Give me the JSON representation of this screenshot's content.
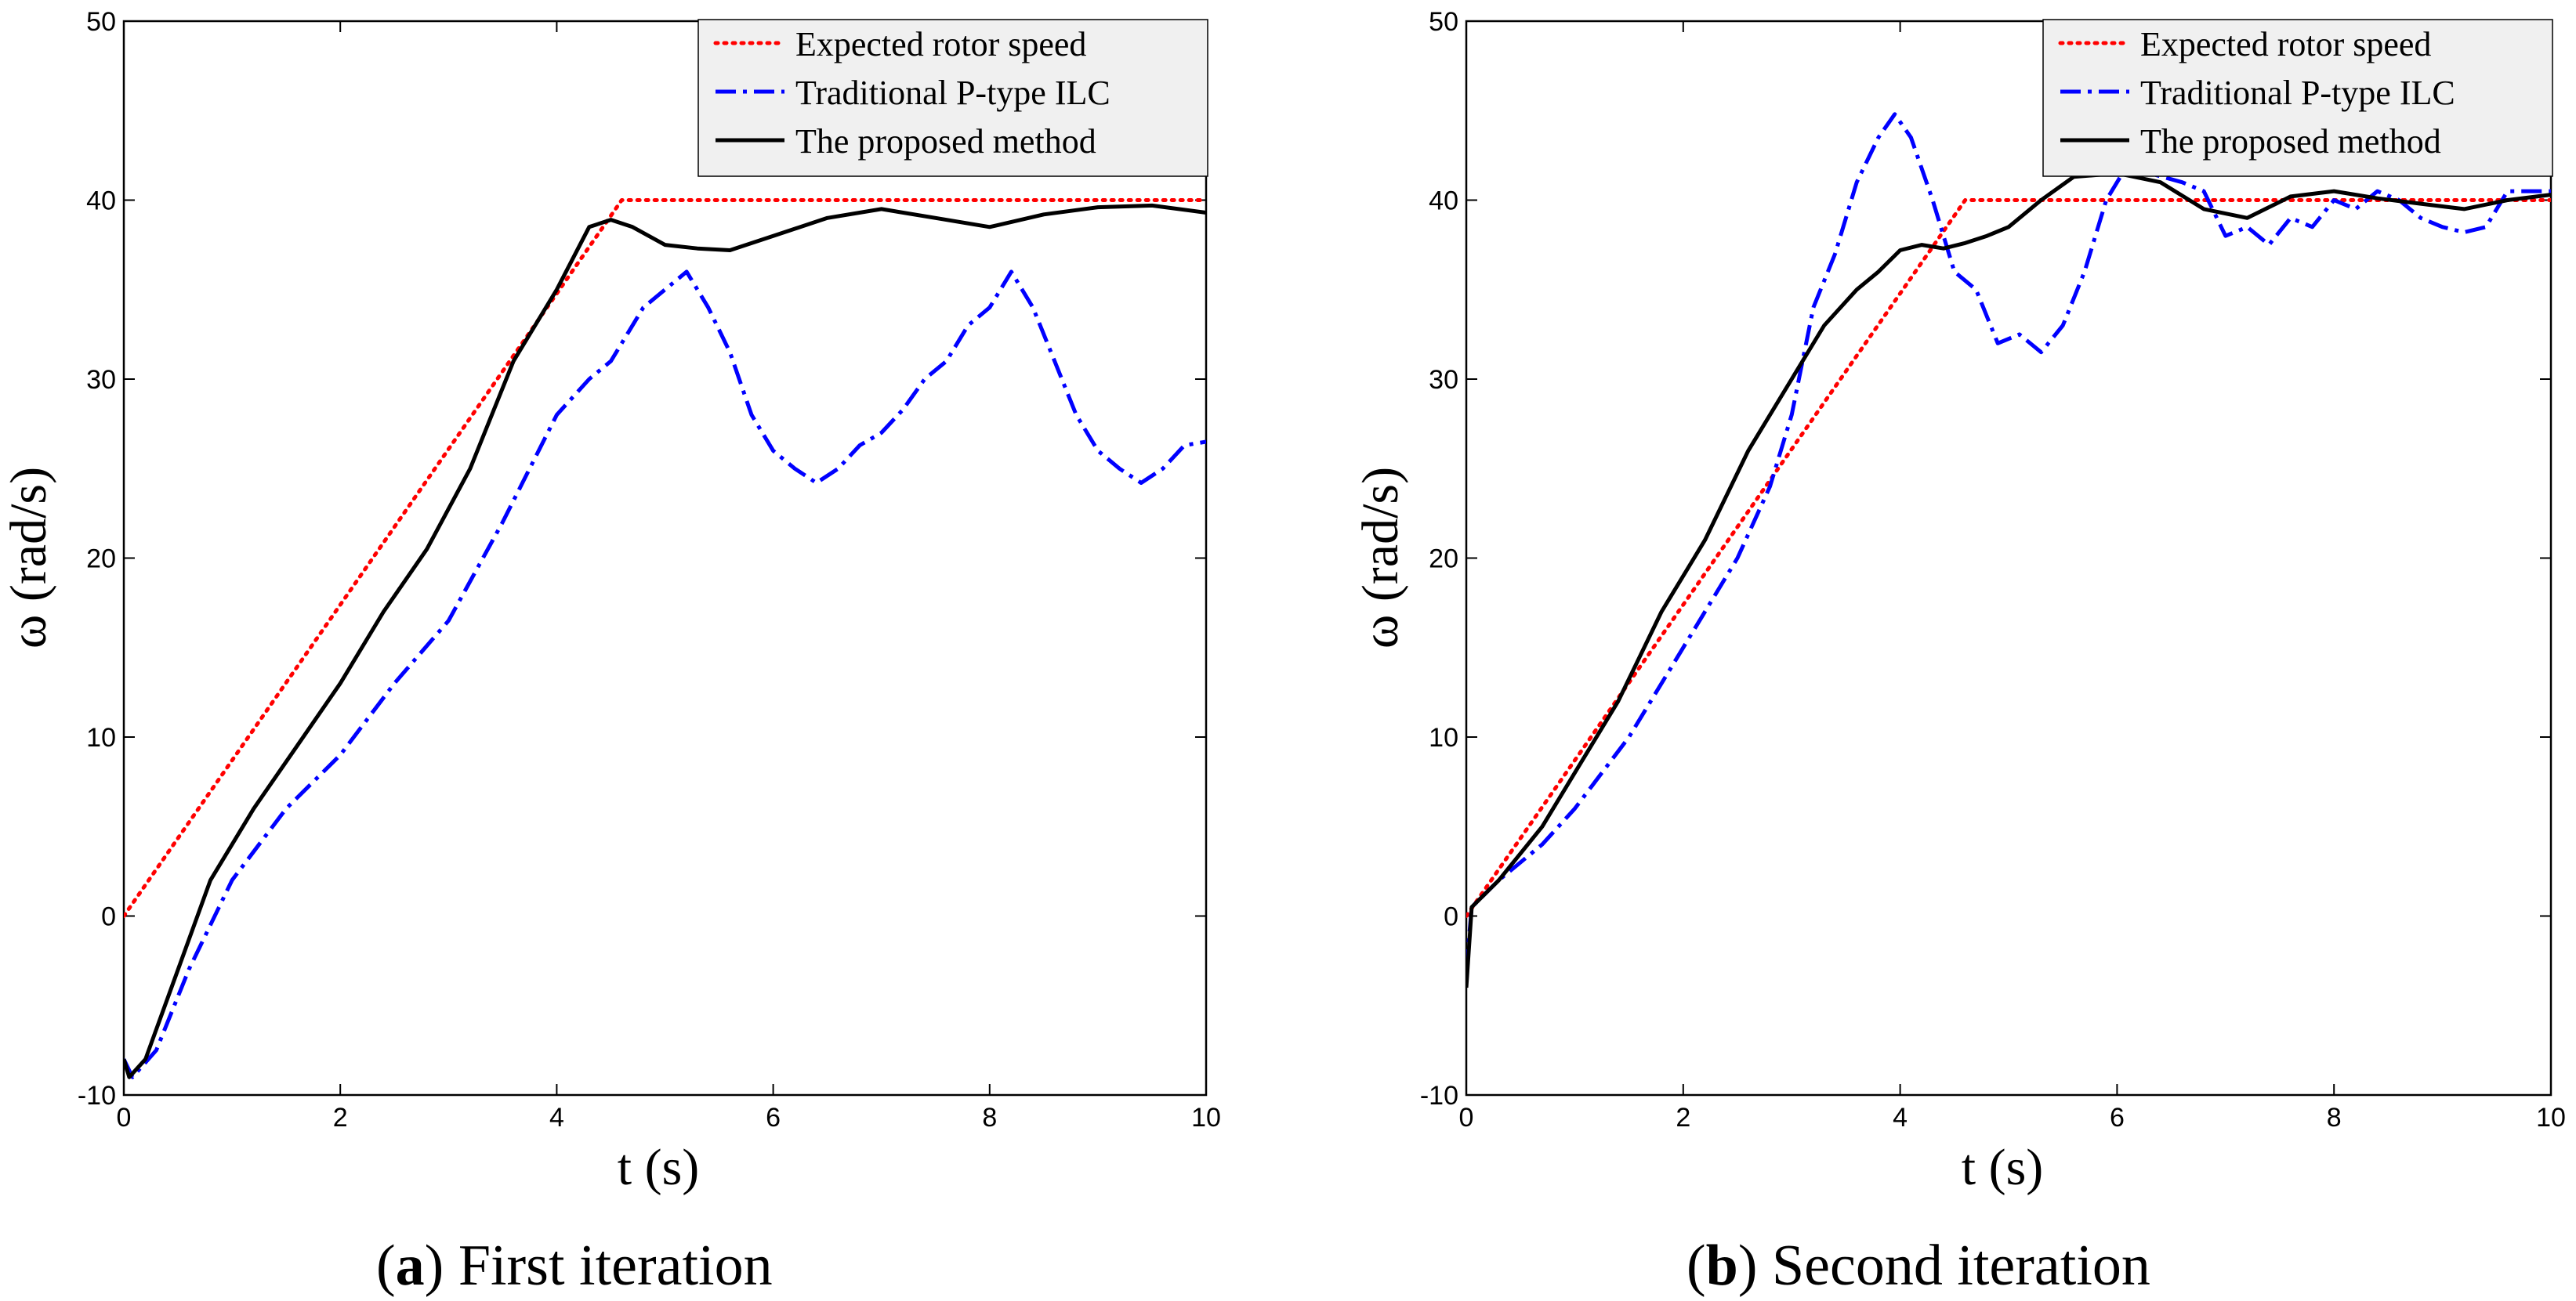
{
  "legend_labels": {
    "expected": "Expected rotor speed",
    "pilc": "Traditional P-type ILC",
    "proposed": "The proposed method"
  },
  "colors": {
    "expected": "#ff0000",
    "pilc": "#0000ff",
    "proposed": "#000000",
    "legend_bg": "#f0f0f0"
  },
  "chart_data": [
    {
      "type": "line",
      "caption_letter": "a",
      "caption_text": " First iteration",
      "xlabel": "t (s)",
      "ylabel": "ω (rad/s)",
      "xlim": [
        0,
        10
      ],
      "ylim": [
        -10,
        50
      ],
      "xticks": [
        "0",
        "2",
        "4",
        "6",
        "8",
        "10"
      ],
      "yticks": [
        "-10",
        "0",
        "10",
        "20",
        "30",
        "40",
        "50"
      ],
      "legend_position": "top-right",
      "series": [
        {
          "key": "expected",
          "name": "Expected rotor speed",
          "x": [
            0,
            4.6,
            10
          ],
          "y": [
            0,
            40,
            40
          ]
        },
        {
          "key": "pilc",
          "name": "Traditional P-type ILC",
          "x": [
            0,
            0.08,
            0.3,
            0.6,
            1.0,
            1.5,
            2.0,
            2.5,
            3.0,
            3.5,
            4.0,
            4.3,
            4.5,
            4.8,
            5.0,
            5.2,
            5.4,
            5.6,
            5.8,
            6.0,
            6.2,
            6.4,
            6.6,
            6.8,
            7.0,
            7.2,
            7.4,
            7.6,
            7.8,
            8.0,
            8.2,
            8.4,
            8.6,
            8.8,
            9.0,
            9.2,
            9.4,
            9.6,
            9.8,
            10.0
          ],
          "y": [
            -8,
            -9,
            -7.5,
            -3,
            2,
            6,
            9,
            13,
            16.5,
            22,
            28,
            30,
            31,
            34,
            35,
            36,
            34,
            31.5,
            28,
            26,
            25,
            24.2,
            25,
            26.3,
            27,
            28.3,
            30,
            31,
            33,
            34,
            36,
            34,
            31,
            28,
            26,
            25,
            24.2,
            25,
            26.3,
            26.5
          ]
        },
        {
          "key": "proposed",
          "name": "The proposed method",
          "x": [
            0,
            0.05,
            0.2,
            0.5,
            0.8,
            1.2,
            1.6,
            2.0,
            2.4,
            2.8,
            3.2,
            3.6,
            4.0,
            4.3,
            4.5,
            4.7,
            5.0,
            5.3,
            5.6,
            6.0,
            6.5,
            7.0,
            7.5,
            8.0,
            8.5,
            9.0,
            9.5,
            10.0
          ],
          "y": [
            -8,
            -9,
            -8,
            -3,
            2,
            6,
            9.5,
            13,
            17,
            20.5,
            25,
            31,
            35,
            38.5,
            38.9,
            38.5,
            37.5,
            37.3,
            37.2,
            38,
            39,
            39.5,
            39,
            38.5,
            39.2,
            39.6,
            39.7,
            39.3
          ]
        }
      ]
    },
    {
      "type": "line",
      "caption_letter": "b",
      "caption_text": " Second iteration",
      "xlabel": "t (s)",
      "ylabel": "ω (rad/s)",
      "xlim": [
        0,
        10
      ],
      "ylim": [
        -10,
        50
      ],
      "xticks": [
        "0",
        "2",
        "4",
        "6",
        "8",
        "10"
      ],
      "yticks": [
        "-10",
        "0",
        "10",
        "20",
        "30",
        "40",
        "50"
      ],
      "legend_position": "top-right",
      "series": [
        {
          "key": "expected",
          "name": "Expected rotor speed",
          "x": [
            0,
            4.6,
            10
          ],
          "y": [
            0,
            40,
            40
          ]
        },
        {
          "key": "pilc",
          "name": "Traditional P-type ILC",
          "x": [
            0,
            0.05,
            0.3,
            0.7,
            1.0,
            1.5,
            2.0,
            2.5,
            2.8,
            3.0,
            3.2,
            3.4,
            3.6,
            3.8,
            3.95,
            4.1,
            4.3,
            4.5,
            4.7,
            4.9,
            5.1,
            5.3,
            5.5,
            5.7,
            5.9,
            6.1,
            6.3,
            6.6,
            6.8,
            7.0,
            7.2,
            7.4,
            7.6,
            7.8,
            8.0,
            8.2,
            8.4,
            8.6,
            8.8,
            9.0,
            9.2,
            9.4,
            9.6,
            10.0
          ],
          "y": [
            -3,
            0.5,
            2,
            4,
            6,
            10,
            15,
            20,
            24,
            28,
            34,
            37,
            41,
            43.5,
            44.8,
            43.5,
            40,
            36,
            35,
            32,
            32.5,
            31.5,
            33,
            36,
            40,
            42,
            41.5,
            41,
            40.5,
            38,
            38.5,
            37.5,
            39,
            38.5,
            40,
            39.5,
            40.5,
            40,
            39,
            38.5,
            38.2,
            38.5,
            40.5,
            40.5
          ]
        },
        {
          "key": "proposed",
          "name": "The proposed method",
          "x": [
            0,
            0.05,
            0.3,
            0.7,
            1.0,
            1.4,
            1.8,
            2.2,
            2.6,
            3.0,
            3.3,
            3.6,
            3.8,
            4.0,
            4.2,
            4.4,
            4.6,
            4.8,
            5.0,
            5.3,
            5.6,
            6.0,
            6.4,
            6.8,
            7.2,
            7.6,
            8.0,
            8.4,
            8.8,
            9.2,
            9.6,
            10.0
          ],
          "y": [
            -4,
            0.5,
            2,
            5,
            8,
            12,
            17,
            21,
            26,
            30,
            33,
            35,
            36,
            37.2,
            37.5,
            37.3,
            37.6,
            38,
            38.5,
            40,
            41.3,
            41.5,
            41,
            39.5,
            39,
            40.2,
            40.5,
            40.1,
            39.8,
            39.5,
            40,
            40.3
          ]
        }
      ]
    }
  ]
}
